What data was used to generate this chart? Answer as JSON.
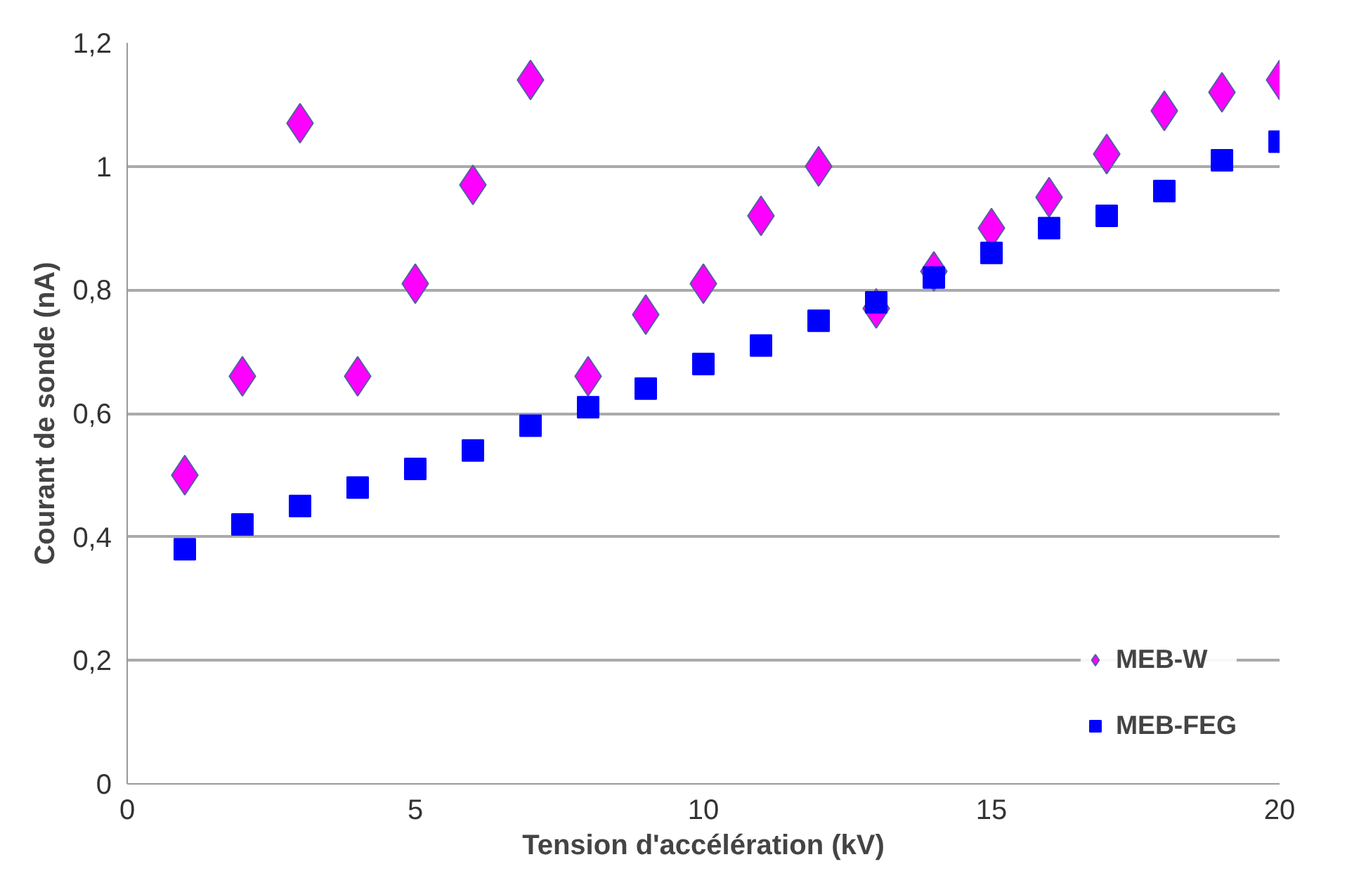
{
  "chart_data": {
    "type": "scatter",
    "xlabel": "Tension d'accélération (kV)",
    "ylabel": "Courant de sonde (nA)",
    "x": [
      1,
      2,
      3,
      4,
      5,
      6,
      7,
      8,
      9,
      10,
      11,
      12,
      13,
      14,
      15,
      16,
      17,
      18,
      19,
      20
    ],
    "series": [
      {
        "name": "MEB-W",
        "color": "#ff00ff",
        "marker": "diamond",
        "values": [
          0.5,
          0.66,
          1.07,
          0.66,
          0.81,
          0.97,
          1.14,
          0.66,
          0.76,
          0.81,
          0.92,
          1.0,
          0.77,
          0.83,
          0.9,
          0.95,
          1.02,
          1.09,
          1.12,
          1.14
        ]
      },
      {
        "name": "MEB-FEG",
        "color": "#0000ff",
        "marker": "square",
        "values": [
          0.38,
          0.42,
          0.45,
          0.48,
          0.51,
          0.54,
          0.58,
          0.61,
          0.64,
          0.68,
          0.71,
          0.75,
          0.78,
          0.82,
          0.86,
          0.9,
          0.92,
          0.96,
          1.01,
          1.04
        ]
      }
    ],
    "xlim": [
      0,
      20
    ],
    "xticks": [
      0,
      5,
      10,
      15,
      20
    ],
    "ylim": [
      0,
      1.2
    ],
    "yticks": [
      0,
      {
        "value": 0.2,
        "label": "0,2"
      },
      {
        "value": 0.4,
        "label": "0,4"
      },
      {
        "value": 0.6,
        "label": "0,6"
      },
      {
        "value": 0.8,
        "label": "0,8"
      },
      1,
      {
        "value": 1.2,
        "label": "1,2"
      }
    ],
    "grid": "y",
    "legend": "bottom right"
  }
}
